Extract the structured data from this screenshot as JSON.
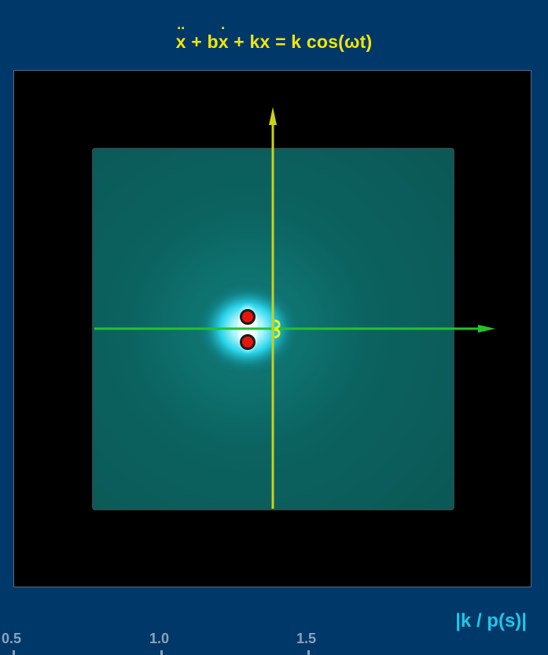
{
  "title": {
    "x": "x",
    "part1": " + b",
    "xdot": "x",
    "part2": " + kx = k cos(ωt)"
  },
  "diagram": {
    "type": "s-plane pole plot",
    "poles": [
      {
        "re": -0.5,
        "im": 0.5
      },
      {
        "re": -0.5,
        "im": -0.5
      }
    ],
    "axis_colors": {
      "real": "#22c32a",
      "imaginary": "#c9d11a"
    },
    "pole_color": "#e8150c",
    "glow_color": "#4de9ff",
    "plane_color": "#0d6e6c"
  },
  "axis_label": "|k / p(s)|",
  "ticks": [
    "0.5",
    "1.0",
    "1.5"
  ]
}
